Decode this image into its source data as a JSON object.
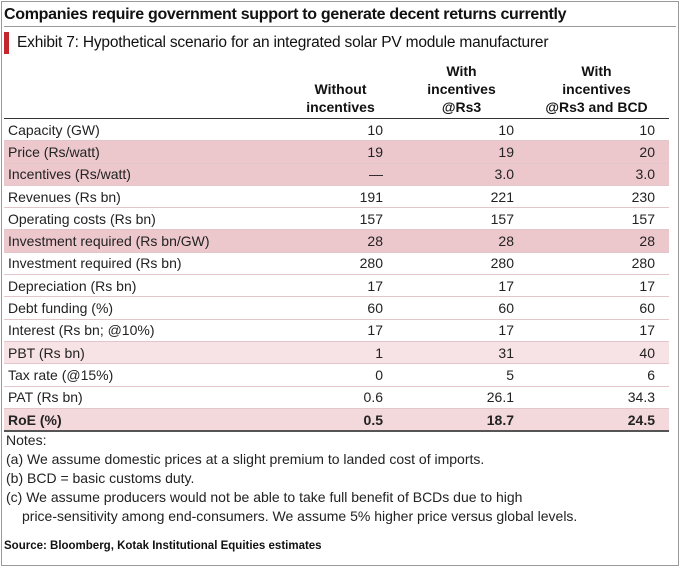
{
  "headline": "Companies require government support to generate decent returns currently",
  "exhibit_title": "Exhibit 7: Hypothetical scenario for an integrated solar PV module manufacturer",
  "columns": [
    {
      "line1": "",
      "line2": "Without",
      "line3": "incentives"
    },
    {
      "line1": "With",
      "line2": "incentives",
      "line3": "@Rs3"
    },
    {
      "line1": "With",
      "line2": "incentives",
      "line3": "@Rs3 and BCD"
    }
  ],
  "rows": [
    {
      "label": "Capacity (GW)",
      "values": [
        "10",
        "10",
        "10"
      ],
      "style": "plain"
    },
    {
      "label": "Price (Rs/watt)",
      "values": [
        "19",
        "19",
        "20"
      ],
      "style": "hl"
    },
    {
      "label": "Incentives (Rs/watt)",
      "values": [
        "—",
        "3.0",
        "3.0"
      ],
      "style": "hl"
    },
    {
      "label": "Revenues (Rs bn)",
      "values": [
        "191",
        "221",
        "230"
      ],
      "style": "plain"
    },
    {
      "label": "Operating costs (Rs bn)",
      "values": [
        "157",
        "157",
        "157"
      ],
      "style": "plain"
    },
    {
      "label": "Investment required (Rs bn/GW)",
      "values": [
        "28",
        "28",
        "28"
      ],
      "style": "hl"
    },
    {
      "label": "Investment required (Rs bn)",
      "values": [
        "280",
        "280",
        "280"
      ],
      "style": "plain"
    },
    {
      "label": "Depreciation (Rs bn)",
      "values": [
        "17",
        "17",
        "17"
      ],
      "style": "plain"
    },
    {
      "label": "Debt funding (%)",
      "values": [
        "60",
        "60",
        "60"
      ],
      "style": "plain"
    },
    {
      "label": "Interest (Rs bn; @10%)",
      "values": [
        "17",
        "17",
        "17"
      ],
      "style": "plain"
    },
    {
      "label": "PBT (Rs bn)",
      "values": [
        "1",
        "31",
        "40"
      ],
      "style": "hl-light"
    },
    {
      "label": "Tax rate (@15%)",
      "values": [
        "0",
        "5",
        "6"
      ],
      "style": "plain"
    },
    {
      "label": "PAT (Rs bn)",
      "values": [
        "0.6",
        "26.1",
        "34.3"
      ],
      "style": "plain"
    },
    {
      "label": "RoE (%)",
      "values": [
        "0.5",
        "18.7",
        "24.5"
      ],
      "style": "total"
    }
  ],
  "notes": {
    "heading": "Notes:",
    "a": "(a) We assume domestic prices at a slight premium to landed cost of imports.",
    "b": "(b) BCD = basic customs duty.",
    "c1": "(c) We assume producers would not be able to take full benefit of BCDs due to high",
    "c2": "price-sensitivity among end-consumers. We assume 5% higher price versus global levels."
  },
  "source": "Source: Bloomberg, Kotak Institutional Equities estimates",
  "colors": {
    "accent_bar": "#c1272d",
    "highlight_row": "#ecc8cd",
    "light_row": "#f7e3e5"
  }
}
